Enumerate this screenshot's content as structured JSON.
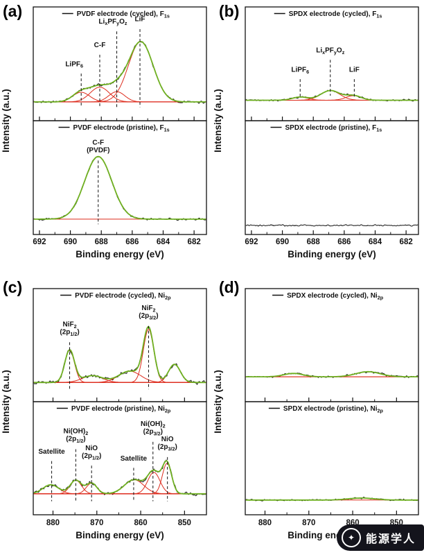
{
  "chart_data": {
    "type": "line",
    "description": "XPS spectra (F1s and Ni2p regions) of PVDF vs SPDX electrodes, cycled vs pristine, with black measured data, red fitted components and green cumulative fit. Peak centers in eV, amplitudes as fraction of subplot height.",
    "colors": {
      "data": "#141414",
      "fit": "#dd2b1c",
      "envelope": "#6fb021",
      "marker": "#111111"
    },
    "panels": [
      {
        "letter": "(a)",
        "xlabel": "Binding energy (eV)",
        "ylabel": "Intensity (a.u.)",
        "x_start": 692.4,
        "x_end": 681.2,
        "x_ticks": [
          692,
          690,
          688,
          686,
          684,
          682
        ],
        "subplots": [
          {
            "legend": "PVDF electrode (cycled), F~1s~",
            "baseline": 0.835,
            "noise": 1.3,
            "fit": true,
            "peaks": [
              {
                "c": 689.3,
                "s": 0.55,
                "a": 0.085
              },
              {
                "c": 688.1,
                "s": 0.62,
                "a": 0.13
              },
              {
                "c": 687.0,
                "s": 0.52,
                "a": 0.09
              },
              {
                "c": 685.45,
                "s": 0.8,
                "a": 0.53
              }
            ],
            "annotations": [
              {
                "x": 689.3,
                "lx": 689.75,
                "lines": [
                  "LiPF~6~"
                ],
                "ly": 0.52,
                "d0": 0.585,
                "d1": 0.88
              },
              {
                "x": 688.1,
                "lines": [
                  "C-F"
                ],
                "ly": 0.355,
                "d0": 0.42,
                "d1": 0.88
              },
              {
                "x": 687.0,
                "lx": 687.25,
                "lines": [
                  "Li~x~PF~y~O~z~"
                ],
                "ly": 0.145,
                "d0": 0.215,
                "d1": 0.88
              },
              {
                "x": 685.5,
                "lines": [
                  "LiF"
                ],
                "ly": 0.125,
                "d0": 0.195,
                "d1": 0.88
              }
            ]
          },
          {
            "legend": "PVDF electrode (pristine), F~1s~",
            "baseline": 0.865,
            "noise": 1.2,
            "fit": true,
            "peaks": [
              {
                "c": 688.2,
                "s": 0.88,
                "a": 0.55
              }
            ],
            "annotations": [
              {
                "x": 688.2,
                "lines": [
                  "C-F",
                  "(PVDF)"
                ],
                "ly": 0.21,
                "d0": 0.35,
                "d1": 0.91
              }
            ]
          }
        ]
      },
      {
        "letter": "(b)",
        "xlabel": "Binding energy (eV)",
        "ylabel": "Intensity (a.u.)",
        "x_start": 692.4,
        "x_end": 681.2,
        "x_ticks": [
          692,
          690,
          688,
          686,
          684,
          682
        ],
        "subplots": [
          {
            "legend": "SPDX electrode (cycled), F~1s~",
            "baseline": 0.82,
            "noise": 1.0,
            "fit": true,
            "peaks": [
              {
                "c": 688.85,
                "s": 0.5,
                "a": 0.028
              },
              {
                "c": 686.9,
                "s": 0.62,
                "a": 0.085
              },
              {
                "c": 685.4,
                "s": 0.5,
                "a": 0.04
              }
            ],
            "annotations": [
              {
                "x": 688.85,
                "lines": [
                  "LiPF~6~"
                ],
                "ly": 0.57,
                "d0": 0.635,
                "d1": 0.8
              },
              {
                "x": 686.9,
                "lines": [
                  "Li~x~PF~y~O~z~"
                ],
                "ly": 0.4,
                "d0": 0.465,
                "d1": 0.78
              },
              {
                "x": 685.35,
                "lines": [
                  "LiF"
                ],
                "ly": 0.57,
                "d0": 0.635,
                "d1": 0.8
              }
            ]
          },
          {
            "legend": "SPDX electrode (pristine), F~1s~",
            "baseline": 0.92,
            "noise": 0.8,
            "fit": false,
            "peaks": [],
            "annotations": []
          }
        ]
      },
      {
        "letter": "(c)",
        "xlabel": "Binding energy (eV)",
        "ylabel": "Intensity (a.u.)",
        "x_start": 884.5,
        "x_end": 845.0,
        "x_ticks": [
          880,
          870,
          860,
          850
        ],
        "subplots": [
          {
            "legend": "PVDF electrode (cycled), Ni~2p~",
            "baseline": 0.83,
            "noise": 2.0,
            "fit": true,
            "peaks": [
              {
                "c": 876.2,
                "s": 1.1,
                "a": 0.285
              },
              {
                "c": 871.0,
                "s": 2.3,
                "a": 0.06
              },
              {
                "c": 862.5,
                "s": 2.5,
                "a": 0.1
              },
              {
                "c": 858.2,
                "s": 1.2,
                "a": 0.47
              },
              {
                "c": 852.3,
                "s": 1.35,
                "a": 0.16
              }
            ],
            "annotations": [
              {
                "x": 876.2,
                "lines": [
                  "NiF~2~",
                  "(2p~1/2~)"
                ],
                "ly": 0.335,
                "d0": 0.475,
                "d1": 0.89
              },
              {
                "x": 858.2,
                "lines": [
                  "NiF~2~",
                  "(2p~3/2~)"
                ],
                "ly": 0.19,
                "d0": 0.33,
                "d1": 0.89
              }
            ]
          },
          {
            "legend": "PVDF electrode (pristine), Ni~2p~",
            "baseline": 0.815,
            "noise": 1.8,
            "fit": true,
            "peaks": [
              {
                "c": 880.5,
                "s": 1.8,
                "a": 0.08
              },
              {
                "c": 874.8,
                "s": 1.3,
                "a": 0.12
              },
              {
                "c": 871.2,
                "s": 1.2,
                "a": 0.095
              },
              {
                "c": 861.5,
                "s": 2.2,
                "a": 0.125
              },
              {
                "c": 857.0,
                "s": 1.4,
                "a": 0.19
              },
              {
                "c": 854.0,
                "s": 1.05,
                "a": 0.27
              }
            ],
            "annotations": [
              {
                "x": 880.3,
                "lines": [
                  "Satellite"
                ],
                "ly": 0.46,
                "d0": 0.525,
                "d1": 0.88
              },
              {
                "x": 874.8,
                "lines": [
                  "Ni(OH)~2~",
                  "(2p~1/2~)"
                ],
                "ly": 0.28,
                "d0": 0.42,
                "d1": 0.88
              },
              {
                "x": 871.2,
                "lines": [
                  "NiO",
                  "(2p~1/2~)"
                ],
                "ly": 0.43,
                "d0": 0.565,
                "d1": 0.88
              },
              {
                "x": 861.6,
                "lines": [
                  "Satellite"
                ],
                "ly": 0.52,
                "d0": 0.585,
                "d1": 0.88
              },
              {
                "x": 857.2,
                "lines": [
                  "Ni(OH)~2~",
                  "(2p~3/2~)"
                ],
                "ly": 0.215,
                "d0": 0.355,
                "d1": 0.88
              },
              {
                "x": 853.9,
                "lines": [
                  "NiO",
                  "(2p~3/2~)"
                ],
                "ly": 0.35,
                "d0": 0.49,
                "d1": 0.88
              }
            ]
          }
        ]
      },
      {
        "letter": "(d)",
        "xlabel": "Binding energy (eV)",
        "ylabel": "Intensity (a.u.)",
        "x_start": 884.5,
        "x_end": 845.0,
        "x_ticks": [
          880,
          870,
          860,
          850
        ],
        "subplots": [
          {
            "legend": "SPDX electrode (cycled), Ni~2p~",
            "baseline": 0.78,
            "noise": 1.1,
            "fit": true,
            "peaks": [
              {
                "c": 873.5,
                "s": 2.2,
                "a": 0.03
              },
              {
                "c": 856.5,
                "s": 2.8,
                "a": 0.045
              }
            ],
            "annotations": []
          },
          {
            "legend": "SPDX electrode (pristine), Ni~2p~",
            "baseline": 0.87,
            "noise": 0.9,
            "fit": true,
            "peaks": [
              {
                "c": 858.0,
                "s": 3.0,
                "a": 0.018
              }
            ],
            "annotations": []
          }
        ]
      }
    ]
  },
  "watermark": {
    "text": "能源学人"
  }
}
